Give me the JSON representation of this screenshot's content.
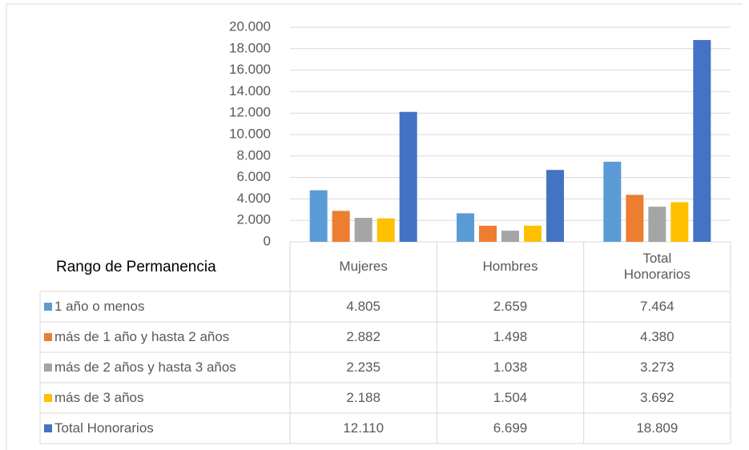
{
  "chart_data": {
    "type": "bar",
    "table_header": "Rango de Permanencia",
    "categories": [
      "Mujeres",
      "Hombres",
      "Total Honorarios"
    ],
    "series": [
      {
        "name": "1 año o menos",
        "color": "#5b9bd5",
        "values": [
          4805,
          2659,
          7464
        ],
        "value_labels": [
          "4.805",
          "2.659",
          "7.464"
        ]
      },
      {
        "name": "más de 1 año y hasta 2 años",
        "color": "#ed7d31",
        "values": [
          2882,
          1498,
          4380
        ],
        "value_labels": [
          "2.882",
          "1.498",
          "4.380"
        ]
      },
      {
        "name": "más de 2 años y hasta 3 años",
        "color": "#a5a5a5",
        "values": [
          2235,
          1038,
          3273
        ],
        "value_labels": [
          "2.235",
          "1.038",
          "3.273"
        ]
      },
      {
        "name": "más de 3 años",
        "color": "#ffc000",
        "values": [
          2188,
          1504,
          3692
        ],
        "value_labels": [
          "2.188",
          "1.504",
          "3.692"
        ]
      },
      {
        "name": "Total Honorarios",
        "color": "#4472c4",
        "values": [
          12110,
          6699,
          18809
        ],
        "value_labels": [
          "12.110",
          "6.699",
          "18.809"
        ]
      }
    ],
    "ylim": [
      0,
      20000
    ],
    "yticks": [
      0,
      {
        "value": 2000,
        "label": "2.000"
      },
      {
        "value": 4000,
        "label": "4.000"
      },
      {
        "value": 6000,
        "label": "6.000"
      },
      {
        "value": 8000,
        "label": "8.000"
      },
      {
        "value": 10000,
        "label": "10.000"
      },
      {
        "value": 12000,
        "label": "12.000"
      },
      {
        "value": 14000,
        "label": "14.000"
      },
      {
        "value": 16000,
        "label": "16.000"
      },
      {
        "value": 18000,
        "label": "18.000"
      },
      {
        "value": 20000,
        "label": "20.000"
      }
    ],
    "grid": true
  }
}
